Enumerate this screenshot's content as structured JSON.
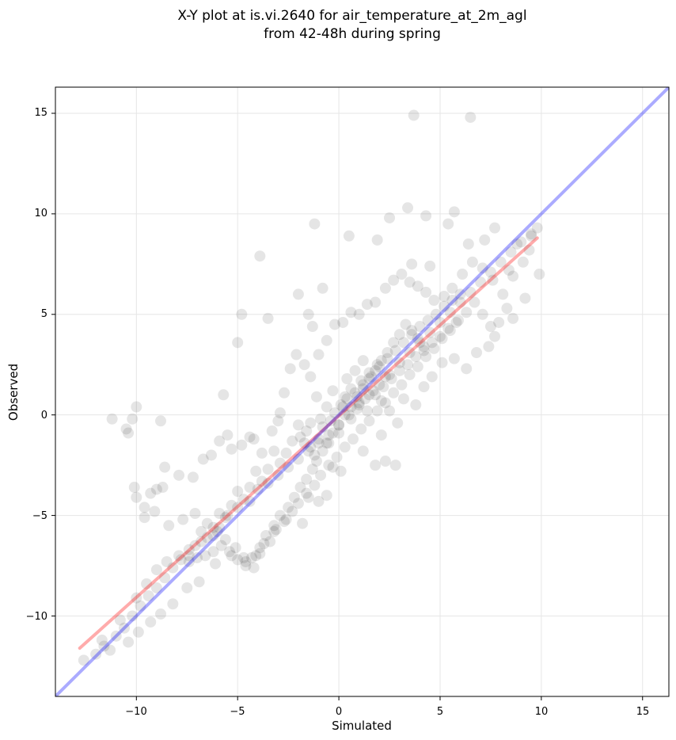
{
  "chart_data": {
    "type": "scatter",
    "title_lines": [
      "X-Y plot at is.vi.2640 for air_temperature_at_2m_agl",
      "from 42-48h during spring"
    ],
    "xlabel": "Simulated",
    "ylabel": "Observed",
    "xlim": [
      -14,
      16.3
    ],
    "ylim": [
      -14,
      16.3
    ],
    "xticks": [
      -10,
      -5,
      0,
      5,
      10,
      15
    ],
    "yticks": [
      -10,
      -5,
      0,
      5,
      10,
      15
    ],
    "tick_labels_x": [
      "−10",
      "−5",
      "0",
      "5",
      "10",
      "15"
    ],
    "tick_labels_y": [
      "−10",
      "−5",
      "0",
      "5",
      "10",
      "15"
    ],
    "grid": true,
    "point_color": "#000000",
    "point_opacity": 0.1,
    "points": [
      [
        -11.2,
        -0.2
      ],
      [
        -10.5,
        -0.7
      ],
      [
        -10.4,
        -0.9
      ],
      [
        -10.2,
        -0.2
      ],
      [
        -10.0,
        0.4
      ],
      [
        -8.8,
        -0.3
      ],
      [
        -5.7,
        1.0
      ],
      [
        -4.8,
        5.0
      ],
      [
        -5.0,
        3.6
      ],
      [
        -3.9,
        7.9
      ],
      [
        -3.5,
        4.8
      ],
      [
        -2.0,
        6.0
      ],
      [
        -1.5,
        5.0
      ],
      [
        -1.3,
        4.4
      ],
      [
        -0.8,
        6.3
      ],
      [
        0.5,
        8.9
      ],
      [
        3.7,
        14.9
      ],
      [
        6.5,
        14.8
      ],
      [
        1.9,
        8.7
      ],
      [
        2.5,
        9.8
      ],
      [
        3.4,
        10.3
      ],
      [
        4.3,
        9.9
      ],
      [
        5.7,
        10.1
      ],
      [
        5.4,
        9.5
      ],
      [
        -1.2,
        9.5
      ],
      [
        7.7,
        9.3
      ],
      [
        9.8,
        9.3
      ],
      [
        3.6,
        7.5
      ],
      [
        4.5,
        7.4
      ],
      [
        6.4,
        8.5
      ],
      [
        7.2,
        8.7
      ],
      [
        8.8,
        8.5
      ],
      [
        9.5,
        8.9
      ],
      [
        8.4,
        7.2
      ],
      [
        9.9,
        7.0
      ],
      [
        9.2,
        5.8
      ],
      [
        8.6,
        4.8
      ],
      [
        7.7,
        3.9
      ],
      [
        7.4,
        3.4
      ],
      [
        6.8,
        3.1
      ],
      [
        6.3,
        2.3
      ],
      [
        5.7,
        2.8
      ],
      [
        5.1,
        2.6
      ],
      [
        4.6,
        1.9
      ],
      [
        4.2,
        1.4
      ],
      [
        3.2,
        0.8
      ],
      [
        3.8,
        0.5
      ],
      [
        2.9,
        -0.4
      ],
      [
        2.1,
        -1.0
      ],
      [
        2.3,
        -2.3
      ],
      [
        2.8,
        -2.5
      ],
      [
        1.8,
        -2.5
      ],
      [
        1.2,
        -1.8
      ],
      [
        0.1,
        -2.8
      ],
      [
        -0.3,
        -2.6
      ],
      [
        -0.6,
        -4.0
      ],
      [
        -1.0,
        -4.3
      ],
      [
        -1.5,
        -4.1
      ],
      [
        -1.8,
        -5.4
      ],
      [
        -2.6,
        -5.2
      ],
      [
        -3.2,
        -5.8
      ],
      [
        -3.7,
        -6.4
      ],
      [
        -4.1,
        -7.0
      ],
      [
        -4.6,
        -7.3
      ],
      [
        -5.3,
        -7.0
      ],
      [
        -6.1,
        -7.4
      ],
      [
        -6.9,
        -8.3
      ],
      [
        -7.5,
        -8.6
      ],
      [
        -8.2,
        -9.4
      ],
      [
        -8.8,
        -9.9
      ],
      [
        -9.3,
        -10.3
      ],
      [
        -9.9,
        -10.8
      ],
      [
        -10.4,
        -11.3
      ],
      [
        -11.3,
        -11.7
      ],
      [
        -12.0,
        -11.9
      ],
      [
        -12.6,
        -12.2
      ],
      [
        -11.7,
        -11.2
      ],
      [
        -10.8,
        -10.2
      ],
      [
        -10.0,
        -9.1
      ],
      [
        -9.5,
        -8.4
      ],
      [
        -9.0,
        -7.7
      ],
      [
        -8.5,
        -7.3
      ],
      [
        -7.9,
        -7.0
      ],
      [
        -7.4,
        -6.7
      ],
      [
        -6.8,
        -6.3
      ],
      [
        -6.2,
        -6.0
      ],
      [
        -5.9,
        -5.6
      ],
      [
        -5.5,
        -5.0
      ],
      [
        -5.0,
        -4.6
      ],
      [
        -4.4,
        -4.3
      ],
      [
        -4.0,
        -3.7
      ],
      [
        -3.5,
        -3.4
      ],
      [
        -3.0,
        -3.0
      ],
      [
        -2.5,
        -2.6
      ],
      [
        -2.0,
        -2.2
      ],
      [
        -1.5,
        -1.8
      ],
      [
        -1.0,
        -1.4
      ],
      [
        -0.5,
        -1.0
      ],
      [
        0.0,
        -0.5
      ],
      [
        0.5,
        0.0
      ],
      [
        1.0,
        0.5
      ],
      [
        1.5,
        1.0
      ],
      [
        2.0,
        1.5
      ],
      [
        2.5,
        2.0
      ],
      [
        3.0,
        2.6
      ],
      [
        3.5,
        3.1
      ],
      [
        4.0,
        3.6
      ],
      [
        4.5,
        4.1
      ],
      [
        5.0,
        4.6
      ],
      [
        5.5,
        5.1
      ],
      [
        6.0,
        5.6
      ],
      [
        6.5,
        6.1
      ],
      [
        7.0,
        6.6
      ],
      [
        7.5,
        7.1
      ],
      [
        8.0,
        7.6
      ],
      [
        8.5,
        8.1
      ],
      [
        9.0,
        8.6
      ],
      [
        9.5,
        9.0
      ],
      [
        -10.1,
        -3.6
      ],
      [
        -10.0,
        -4.1
      ],
      [
        -9.6,
        -4.6
      ],
      [
        -9.3,
        -3.9
      ],
      [
        -9.0,
        -3.7
      ],
      [
        -8.6,
        -2.6
      ],
      [
        -8.7,
        -3.6
      ],
      [
        -7.9,
        -3.0
      ],
      [
        -7.2,
        -3.1
      ],
      [
        -6.7,
        -2.2
      ],
      [
        -6.3,
        -2.0
      ],
      [
        -5.9,
        -1.3
      ],
      [
        -5.5,
        -1.0
      ],
      [
        -5.3,
        -1.7
      ],
      [
        -4.8,
        -1.5
      ],
      [
        -4.4,
        -1.1
      ],
      [
        -4.2,
        -1.2
      ],
      [
        -3.8,
        -1.9
      ],
      [
        -3.3,
        -0.8
      ],
      [
        -3.0,
        -0.3
      ],
      [
        -2.9,
        0.1
      ],
      [
        -2.7,
        1.1
      ],
      [
        -2.4,
        2.3
      ],
      [
        -2.1,
        3.0
      ],
      [
        -1.7,
        2.5
      ],
      [
        -1.4,
        1.9
      ],
      [
        -1.0,
        3.0
      ],
      [
        -0.6,
        3.7
      ],
      [
        -0.2,
        4.5
      ],
      [
        0.2,
        4.6
      ],
      [
        0.6,
        5.1
      ],
      [
        1.0,
        5.0
      ],
      [
        1.4,
        5.5
      ],
      [
        1.8,
        5.6
      ],
      [
        2.3,
        6.3
      ],
      [
        2.7,
        6.7
      ],
      [
        3.1,
        7.0
      ],
      [
        3.5,
        6.6
      ],
      [
        3.9,
        6.4
      ],
      [
        4.3,
        6.1
      ],
      [
        4.7,
        5.7
      ],
      [
        5.2,
        5.9
      ],
      [
        5.6,
        6.3
      ],
      [
        6.1,
        7.0
      ],
      [
        6.6,
        7.6
      ],
      [
        7.1,
        7.3
      ],
      [
        7.6,
        6.7
      ],
      [
        8.1,
        6.0
      ],
      [
        8.6,
        6.9
      ],
      [
        9.1,
        7.6
      ],
      [
        9.4,
        8.2
      ],
      [
        -9.6,
        -5.1
      ],
      [
        -9.1,
        -4.8
      ],
      [
        -8.4,
        -5.5
      ],
      [
        -7.7,
        -5.2
      ],
      [
        -7.1,
        -4.9
      ],
      [
        -6.5,
        -5.4
      ],
      [
        -6.0,
        -5.8
      ],
      [
        -5.6,
        -6.2
      ],
      [
        -5.1,
        -6.6
      ],
      [
        -4.7,
        -7.1
      ],
      [
        -4.2,
        -7.6
      ],
      [
        -3.9,
        -6.9
      ],
      [
        -3.4,
        -6.3
      ],
      [
        -3.1,
        -5.7
      ],
      [
        -2.7,
        -5.3
      ],
      [
        -2.3,
        -4.8
      ],
      [
        -2.0,
        -4.4
      ],
      [
        -1.6,
        -3.9
      ],
      [
        -1.2,
        -3.5
      ],
      [
        -0.9,
        -3.0
      ],
      [
        -0.5,
        -2.5
      ],
      [
        -0.1,
        -2.1
      ],
      [
        0.3,
        -1.6
      ],
      [
        0.7,
        -1.2
      ],
      [
        1.1,
        -0.7
      ],
      [
        1.5,
        -0.3
      ],
      [
        1.9,
        0.2
      ],
      [
        2.3,
        0.6
      ],
      [
        2.7,
        1.1
      ],
      [
        3.1,
        1.5
      ],
      [
        3.5,
        2.0
      ],
      [
        3.9,
        2.4
      ],
      [
        4.3,
        2.9
      ],
      [
        4.7,
        3.3
      ],
      [
        5.1,
        3.8
      ],
      [
        5.5,
        4.2
      ],
      [
        5.9,
        4.7
      ],
      [
        6.3,
        5.1
      ],
      [
        6.7,
        5.6
      ],
      [
        7.1,
        5.0
      ],
      [
        7.5,
        4.4
      ],
      [
        7.9,
        4.6
      ],
      [
        8.3,
        5.3
      ],
      [
        -11.6,
        -11.5
      ],
      [
        -11.0,
        -11.0
      ],
      [
        -10.6,
        -10.6
      ],
      [
        -10.2,
        -10.0
      ],
      [
        -9.8,
        -9.5
      ],
      [
        -9.4,
        -9.0
      ],
      [
        -9.0,
        -8.6
      ],
      [
        -8.6,
        -8.1
      ],
      [
        -8.2,
        -7.6
      ],
      [
        -7.8,
        -7.2
      ],
      [
        -7.4,
        -7.3
      ],
      [
        -7.0,
        -7.1
      ],
      [
        -6.6,
        -7.0
      ],
      [
        -6.2,
        -6.8
      ],
      [
        -5.8,
        -6.5
      ],
      [
        -5.4,
        -6.8
      ],
      [
        -5.0,
        -7.2
      ],
      [
        -4.6,
        -7.5
      ],
      [
        -4.3,
        -7.1
      ],
      [
        -3.9,
        -6.6
      ],
      [
        -3.6,
        -6.0
      ],
      [
        -3.2,
        -5.5
      ],
      [
        -2.9,
        -5.0
      ],
      [
        -2.5,
        -4.6
      ],
      [
        -2.2,
        -4.1
      ],
      [
        -1.9,
        -3.6
      ],
      [
        -1.6,
        -3.2
      ],
      [
        -1.3,
        -2.7
      ],
      [
        -1.1,
        -2.3
      ],
      [
        -0.8,
        -1.8
      ],
      [
        -0.5,
        -1.4
      ],
      [
        -0.3,
        -0.9
      ],
      [
        0.0,
        -0.5
      ],
      [
        0.3,
        0.0
      ],
      [
        0.6,
        0.4
      ],
      [
        0.9,
        0.9
      ],
      [
        1.2,
        1.3
      ],
      [
        1.5,
        1.8
      ],
      [
        1.8,
        2.2
      ],
      [
        2.1,
        2.7
      ],
      [
        2.4,
        3.1
      ],
      [
        2.7,
        3.6
      ],
      [
        3.0,
        4.0
      ],
      [
        3.3,
        4.5
      ],
      [
        3.6,
        4.2
      ],
      [
        3.9,
        3.8
      ],
      [
        4.2,
        3.4
      ],
      [
        -1.9,
        -1.1
      ],
      [
        -1.6,
        -0.8
      ],
      [
        -1.4,
        -1.6
      ],
      [
        -1.2,
        -2.0
      ],
      [
        -1.0,
        -1.2
      ],
      [
        -0.8,
        -0.6
      ],
      [
        -0.6,
        -1.4
      ],
      [
        -0.4,
        -0.3
      ],
      [
        -0.2,
        0.1
      ],
      [
        0.0,
        -0.9
      ],
      [
        0.2,
        0.4
      ],
      [
        0.4,
        0.8
      ],
      [
        0.6,
        -0.2
      ],
      [
        0.8,
        1.1
      ],
      [
        1.0,
        0.6
      ],
      [
        1.2,
        1.5
      ],
      [
        1.4,
        0.2
      ],
      [
        1.6,
        1.9
      ],
      [
        1.8,
        1.0
      ],
      [
        2.0,
        2.4
      ],
      [
        2.2,
        1.4
      ],
      [
        2.4,
        2.8
      ],
      [
        2.6,
        1.8
      ],
      [
        2.8,
        3.2
      ],
      [
        3.0,
        2.2
      ],
      [
        3.2,
        3.6
      ],
      [
        3.4,
        2.5
      ],
      [
        3.6,
        4.0
      ],
      [
        3.8,
        2.9
      ],
      [
        4.0,
        4.4
      ],
      [
        4.2,
        3.2
      ],
      [
        4.4,
        4.7
      ],
      [
        4.6,
        3.6
      ],
      [
        4.8,
        5.0
      ],
      [
        5.0,
        3.9
      ],
      [
        5.2,
        5.4
      ],
      [
        5.4,
        4.3
      ],
      [
        5.6,
        5.7
      ],
      [
        5.8,
        4.6
      ],
      [
        6.0,
        6.0
      ],
      [
        0.3,
        0.9
      ],
      [
        0.6,
        1.3
      ],
      [
        0.9,
        0.3
      ],
      [
        1.1,
        1.7
      ],
      [
        1.3,
        0.8
      ],
      [
        1.5,
        2.1
      ],
      [
        1.7,
        1.2
      ],
      [
        1.9,
        2.5
      ],
      [
        2.1,
        0.7
      ],
      [
        2.3,
        1.9
      ],
      [
        2.5,
        0.2
      ],
      [
        0.8,
        2.2
      ],
      [
        1.2,
        2.7
      ],
      [
        0.4,
        1.8
      ],
      [
        0.1,
        0.5
      ],
      [
        -0.3,
        1.2
      ],
      [
        -0.6,
        0.4
      ],
      [
        -0.9,
        -0.2
      ],
      [
        -1.1,
        0.9
      ],
      [
        -1.4,
        -0.4
      ],
      [
        -1.7,
        -1.4
      ],
      [
        -2.0,
        -0.5
      ],
      [
        -2.3,
        -1.3
      ],
      [
        -2.6,
        -1.9
      ],
      [
        -2.9,
        -2.4
      ],
      [
        -3.2,
        -1.8
      ],
      [
        -3.5,
        -2.7
      ],
      [
        -3.8,
        -3.3
      ],
      [
        -4.1,
        -2.8
      ],
      [
        -4.4,
        -3.6
      ],
      [
        -4.7,
        -4.2
      ],
      [
        -5.0,
        -3.8
      ],
      [
        -5.3,
        -4.5
      ],
      [
        -5.6,
        -5.1
      ],
      [
        -5.9,
        -4.9
      ],
      [
        -6.2,
        -5.6
      ],
      [
        -6.5,
        -6.1
      ],
      [
        -6.8,
        -5.8
      ],
      [
        -7.1,
        -6.5
      ],
      [
        -7.4,
        -7.0
      ]
    ],
    "series": [
      {
        "name": "",
        "type": "fit",
        "color": "#ff0000",
        "opacity": 0.33,
        "x": [
          -12.8,
          9.8
        ],
        "y": [
          -11.6,
          8.8
        ]
      },
      {
        "name": "",
        "type": "identity",
        "color": "#0000ff",
        "opacity": 0.33,
        "x": [
          -14,
          16.3
        ],
        "y": [
          -14,
          16.3
        ]
      }
    ]
  }
}
